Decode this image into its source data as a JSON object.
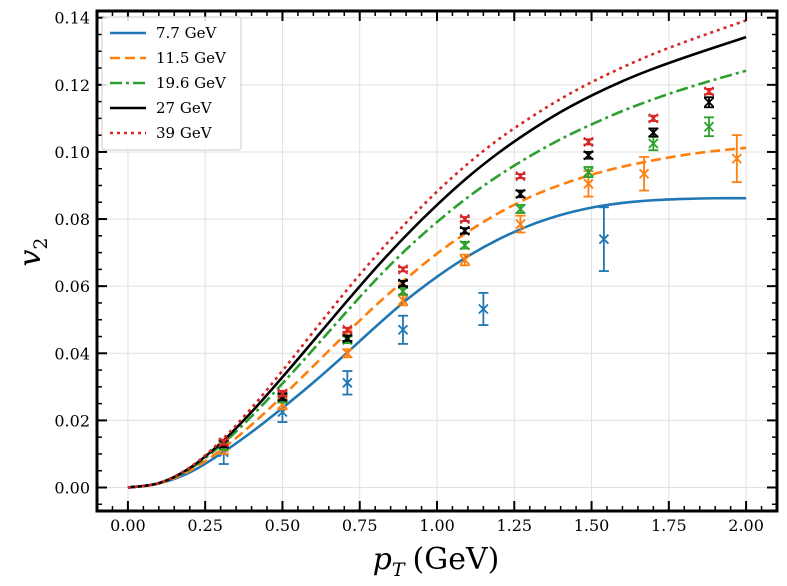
{
  "chart_data": {
    "type": "line",
    "title": "",
    "xlabel_var": "p",
    "xlabel_sub": "T",
    "xlabel_unit": "(GeV)",
    "ylabel_var": "v",
    "ylabel_sub": "2",
    "xlim": [
      -0.1,
      2.1
    ],
    "ylim": [
      -0.007,
      0.142
    ],
    "xticks": [
      0.0,
      0.25,
      0.5,
      0.75,
      1.0,
      1.25,
      1.5,
      1.75,
      2.0
    ],
    "xtick_labels": [
      "0.00",
      "0.25",
      "0.50",
      "0.75",
      "1.00",
      "1.25",
      "1.50",
      "1.75",
      "2.00"
    ],
    "yticks": [
      0.0,
      0.02,
      0.04,
      0.06,
      0.08,
      0.1,
      0.12,
      0.14
    ],
    "ytick_labels": [
      "0.00",
      "0.02",
      "0.04",
      "0.06",
      "0.08",
      "0.10",
      "0.12",
      "0.14"
    ],
    "grid": true,
    "legend_position": "top-left",
    "series": [
      {
        "name": "7.7 GeV",
        "color": "#1f77b4",
        "style": "solid",
        "x": [
          0.0,
          0.1,
          0.2,
          0.3,
          0.4,
          0.5,
          0.6,
          0.7,
          0.8,
          0.9,
          1.0,
          1.1,
          1.2,
          1.3,
          1.4,
          1.5,
          1.6,
          1.7,
          1.8,
          1.9,
          2.0
        ],
        "y": [
          0.0,
          0.0012,
          0.0045,
          0.01,
          0.0165,
          0.0237,
          0.0313,
          0.0394,
          0.0478,
          0.0558,
          0.0628,
          0.0689,
          0.074,
          0.0781,
          0.0812,
          0.0834,
          0.0848,
          0.0856,
          0.086,
          0.0862,
          0.0862
        ],
        "points": [
          {
            "x": 0.31,
            "y": 0.0105,
            "err": 0.0035
          },
          {
            "x": 0.5,
            "y": 0.0225,
            "err": 0.003
          },
          {
            "x": 0.71,
            "y": 0.0312,
            "err": 0.0035
          },
          {
            "x": 0.89,
            "y": 0.047,
            "err": 0.0042
          },
          {
            "x": 1.15,
            "y": 0.0532,
            "err": 0.0048
          },
          {
            "x": 1.54,
            "y": 0.074,
            "err": 0.0095
          }
        ]
      },
      {
        "name": "11.5 GeV",
        "color": "#ff7f0e",
        "style": "dashed",
        "x": [
          0.0,
          0.1,
          0.2,
          0.3,
          0.4,
          0.5,
          0.6,
          0.7,
          0.8,
          0.9,
          1.0,
          1.1,
          1.2,
          1.3,
          1.4,
          1.5,
          1.6,
          1.7,
          1.8,
          1.9,
          2.0
        ],
        "y": [
          0.0,
          0.0012,
          0.005,
          0.0111,
          0.0187,
          0.0272,
          0.0362,
          0.0453,
          0.0541,
          0.0622,
          0.0697,
          0.0762,
          0.0818,
          0.0865,
          0.0902,
          0.0932,
          0.0956,
          0.0975,
          0.0991,
          0.1003,
          0.1012
        ],
        "points": [
          {
            "x": 0.31,
            "y": 0.0118,
            "err": 0.0018
          },
          {
            "x": 0.5,
            "y": 0.0248,
            "err": 0.0015
          },
          {
            "x": 0.71,
            "y": 0.04,
            "err": 0.0012
          },
          {
            "x": 0.89,
            "y": 0.0558,
            "err": 0.0015
          },
          {
            "x": 1.09,
            "y": 0.0678,
            "err": 0.0016
          },
          {
            "x": 1.27,
            "y": 0.0785,
            "err": 0.0025
          },
          {
            "x": 1.49,
            "y": 0.0905,
            "err": 0.0038
          },
          {
            "x": 1.67,
            "y": 0.0935,
            "err": 0.005
          },
          {
            "x": 1.97,
            "y": 0.098,
            "err": 0.007
          }
        ]
      },
      {
        "name": "19.6 GeV",
        "color": "#2ca02c",
        "style": "dashdot",
        "x": [
          0.0,
          0.1,
          0.2,
          0.3,
          0.4,
          0.5,
          0.6,
          0.7,
          0.8,
          0.9,
          1.0,
          1.1,
          1.2,
          1.3,
          1.4,
          1.5,
          1.6,
          1.7,
          1.8,
          1.9,
          2.0
        ],
        "y": [
          0.0,
          0.0013,
          0.0055,
          0.0125,
          0.0212,
          0.031,
          0.0412,
          0.0516,
          0.0617,
          0.0709,
          0.0791,
          0.0865,
          0.093,
          0.0987,
          0.1038,
          0.1082,
          0.1122,
          0.1157,
          0.1188,
          0.1216,
          0.1242
        ],
        "points": [
          {
            "x": 0.31,
            "y": 0.0125,
            "err": 0.0012
          },
          {
            "x": 0.5,
            "y": 0.0265,
            "err": 0.0012
          },
          {
            "x": 0.71,
            "y": 0.044,
            "err": 0.001
          },
          {
            "x": 0.89,
            "y": 0.0585,
            "err": 0.001
          },
          {
            "x": 1.09,
            "y": 0.0722,
            "err": 0.001
          },
          {
            "x": 1.27,
            "y": 0.083,
            "err": 0.0012
          },
          {
            "x": 1.49,
            "y": 0.094,
            "err": 0.0015
          },
          {
            "x": 1.7,
            "y": 0.1025,
            "err": 0.002
          },
          {
            "x": 1.88,
            "y": 0.1075,
            "err": 0.0028
          }
        ]
      },
      {
        "name": "27 GeV",
        "color": "#000000",
        "style": "solid",
        "x": [
          0.0,
          0.1,
          0.2,
          0.3,
          0.4,
          0.5,
          0.6,
          0.7,
          0.8,
          0.9,
          1.0,
          1.1,
          1.2,
          1.3,
          1.4,
          1.5,
          1.6,
          1.7,
          1.8,
          1.9,
          2.0
        ],
        "y": [
          0.0,
          0.0013,
          0.0058,
          0.0132,
          0.0225,
          0.0329,
          0.0437,
          0.0546,
          0.0652,
          0.0751,
          0.0842,
          0.0925,
          0.0998,
          0.1062,
          0.1119,
          0.1168,
          0.1211,
          0.1248,
          0.1281,
          0.1312,
          0.1342
        ],
        "points": [
          {
            "x": 0.31,
            "y": 0.013,
            "err": 0.001
          },
          {
            "x": 0.5,
            "y": 0.027,
            "err": 0.001
          },
          {
            "x": 0.71,
            "y": 0.0445,
            "err": 0.0008
          },
          {
            "x": 0.89,
            "y": 0.0608,
            "err": 0.0008
          },
          {
            "x": 1.09,
            "y": 0.0765,
            "err": 0.0008
          },
          {
            "x": 1.27,
            "y": 0.0875,
            "err": 0.001
          },
          {
            "x": 1.49,
            "y": 0.099,
            "err": 0.001
          },
          {
            "x": 1.7,
            "y": 0.1058,
            "err": 0.0012
          },
          {
            "x": 1.88,
            "y": 0.1148,
            "err": 0.0015
          }
        ]
      },
      {
        "name": "39 GeV",
        "color": "#d62728",
        "style": "dotted",
        "x": [
          0.0,
          0.1,
          0.2,
          0.3,
          0.4,
          0.5,
          0.6,
          0.7,
          0.8,
          0.9,
          1.0,
          1.1,
          1.2,
          1.3,
          1.4,
          1.5,
          1.6,
          1.7,
          1.8,
          1.9,
          2.0
        ],
        "y": [
          0.0,
          0.0013,
          0.006,
          0.0138,
          0.0237,
          0.0348,
          0.0464,
          0.0579,
          0.0688,
          0.0789,
          0.0882,
          0.0965,
          0.1038,
          0.1101,
          0.1158,
          0.1208,
          0.1252,
          0.1292,
          0.1327,
          0.136,
          0.1392
        ],
        "points": [
          {
            "x": 0.31,
            "y": 0.0135,
            "err": 0.0008
          },
          {
            "x": 0.5,
            "y": 0.028,
            "err": 0.0008
          },
          {
            "x": 0.71,
            "y": 0.047,
            "err": 0.0006
          },
          {
            "x": 0.89,
            "y": 0.065,
            "err": 0.0006
          },
          {
            "x": 1.09,
            "y": 0.08,
            "err": 0.0006
          },
          {
            "x": 1.27,
            "y": 0.0928,
            "err": 0.0006
          },
          {
            "x": 1.49,
            "y": 0.103,
            "err": 0.0008
          },
          {
            "x": 1.7,
            "y": 0.11,
            "err": 0.0008
          },
          {
            "x": 1.88,
            "y": 0.118,
            "err": 0.0008
          }
        ]
      }
    ]
  }
}
